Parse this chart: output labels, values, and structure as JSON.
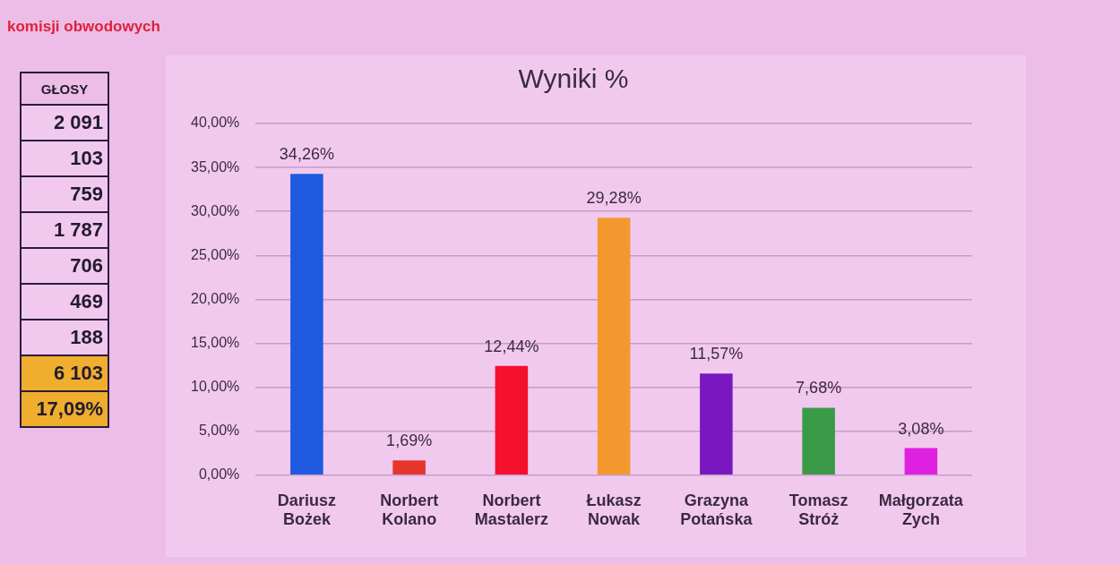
{
  "chart_data": [
    {
      "type": "other",
      "title": "komisji obwodowych",
      "subtitle": "GŁOSY",
      "annotations": [
        "2 091",
        "103",
        "759",
        "1 787",
        "706",
        "469",
        "188",
        "6 103",
        "17,09%"
      ],
      "colors": [
        "#f2c9ee",
        "#f2c9ee",
        "#f2c9ee",
        "#f2c9ee",
        "#f2c9ee",
        "#f2c9ee",
        "#f2c9ee",
        "#f0ae2e",
        "#f0ae2e"
      ]
    },
    {
      "type": "bar",
      "title": "Wyniki %",
      "categories": [
        "Dariusz Bożek",
        "Norbert Kolano",
        "Norbert Mastalerz",
        "Łukasz Nowak",
        "Grazyna Potańska",
        "Tomasz Stróż",
        "Małgorzata Zych"
      ],
      "values": [
        34.26,
        1.69,
        12.44,
        29.28,
        11.57,
        7.68,
        3.08
      ],
      "value_labels": [
        "34,26%",
        "1,69%",
        "12,44%",
        "29,28%",
        "11,57%",
        "7,68%",
        "3,08%"
      ],
      "colors": [
        "#1d5ae0",
        "#e5372c",
        "#f5102e",
        "#f3982e",
        "#7a18c0",
        "#3a9a48",
        "#e020e0"
      ],
      "ylim": [
        0,
        40
      ],
      "yticks": [
        {
          "value": 0,
          "label": "0,00%"
        },
        {
          "value": 5,
          "label": "5,00%"
        },
        {
          "value": 10,
          "label": "10,00%"
        },
        {
          "value": 15,
          "label": "15,00%"
        },
        {
          "value": 20,
          "label": "20,00%"
        },
        {
          "value": 25,
          "label": "25,00%"
        },
        {
          "value": 30,
          "label": "30,00%"
        },
        {
          "value": 35,
          "label": "35,00%"
        },
        {
          "value": 40,
          "label": "40,00%"
        }
      ],
      "grid": "y"
    }
  ]
}
